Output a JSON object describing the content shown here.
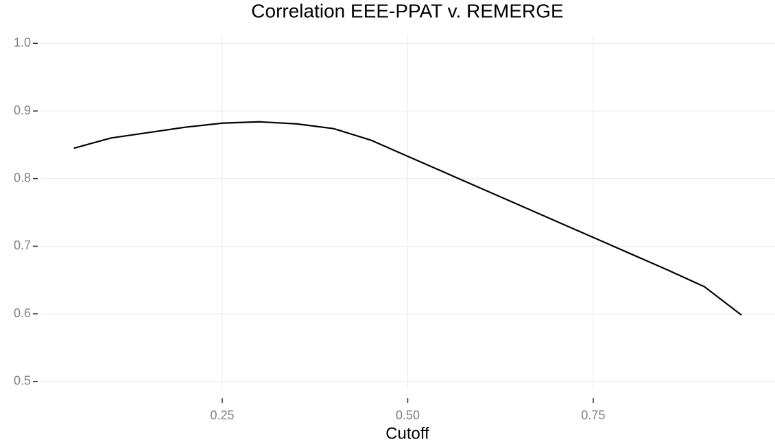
{
  "chart_data": {
    "type": "line",
    "title": "Correlation EEE-PPAT v. REMERGE",
    "x_label": "Cutoff",
    "x": [
      0.05,
      0.1,
      0.15,
      0.2,
      0.25,
      0.3,
      0.35,
      0.4,
      0.45,
      0.5,
      0.55,
      0.6,
      0.65,
      0.7,
      0.75,
      0.8,
      0.85,
      0.9,
      0.95
    ],
    "series": [
      {
        "name": "correlation",
        "color": "#000000",
        "values": [
          0.845,
          0.86,
          0.868,
          0.876,
          0.882,
          0.884,
          0.881,
          0.874,
          0.857,
          0.833,
          0.809,
          0.785,
          0.761,
          0.737,
          0.713,
          0.689,
          0.665,
          0.64,
          0.598
        ]
      }
    ],
    "xlim": [
      0.005,
      0.995
    ],
    "xticks": [
      {
        "value": 0.25,
        "label": "0.25"
      },
      {
        "value": 0.5,
        "label": "0.50"
      },
      {
        "value": 0.75,
        "label": "0.75"
      }
    ],
    "ylim": [
      0.4875,
      1.0125
    ],
    "yticks": [
      0.5,
      0.6,
      0.7,
      0.8,
      0.9,
      {
        "value": 1,
        "label": "1.0"
      }
    ],
    "grid": true
  }
}
